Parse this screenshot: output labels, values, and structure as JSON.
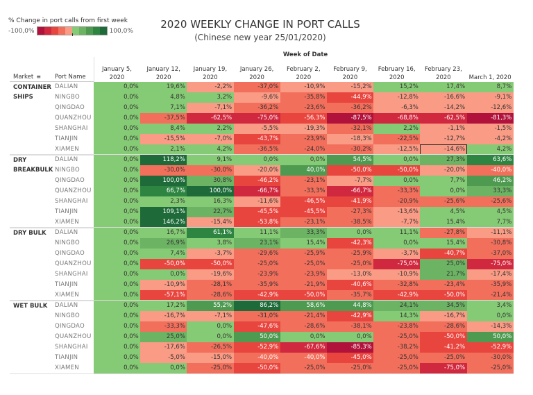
{
  "chart_data": {
    "type": "heatmap",
    "title": "2020 WEEKLY CHANGE IN PORT CALLS",
    "subtitle": "(Chinese new year 25/01/2020)",
    "column_group_label": "Week of Date",
    "row_headers": {
      "market": "Market",
      "port": "Port Name"
    },
    "legend": {
      "title": "% Change in port calls from first week",
      "min_label": "-100,0%",
      "max_label": "100,0%",
      "range": [
        -100,
        100
      ],
      "colors": [
        "#b0123b",
        "#d0283e",
        "#e8453f",
        "#f26f5c",
        "#f99b85",
        "#85ca74",
        "#6cb463",
        "#4e9a50",
        "#2e8542",
        "#1e6b39"
      ]
    },
    "columns": [
      [
        "January 5,",
        "2020"
      ],
      [
        "January 12,",
        "2020"
      ],
      [
        "January 19,",
        "2020"
      ],
      [
        "January 26,",
        "2020"
      ],
      [
        "February 2,",
        "2020"
      ],
      [
        "February 9,",
        "2020"
      ],
      [
        "February 16,",
        "2020"
      ],
      [
        "February 23,",
        "2020"
      ],
      [
        "",
        "March 1, 2020"
      ]
    ],
    "markets": [
      {
        "name_lines": [
          "CONTAINER",
          "SHIPS"
        ],
        "rows": [
          {
            "port": "DALIAN",
            "values": [
              0.0,
              19.6,
              -2.2,
              -37.0,
              -10.9,
              -15.2,
              15.2,
              17.4,
              8.7
            ]
          },
          {
            "port": "NINGBO",
            "values": [
              0.0,
              4.8,
              3.2,
              -9.6,
              -35.8,
              -44.9,
              -12.8,
              -16.6,
              -9.1
            ]
          },
          {
            "port": "QINGDAO",
            "values": [
              0.0,
              7.1,
              -7.1,
              -36.2,
              -23.6,
              -36.2,
              -6.3,
              -14.2,
              -12.6
            ]
          },
          {
            "port": "QUANZHOU",
            "values": [
              0.0,
              -37.5,
              -62.5,
              -75.0,
              -56.3,
              -87.5,
              -68.8,
              -62.5,
              -81.3
            ]
          },
          {
            "port": "SHANGHAI",
            "values": [
              0.0,
              8.4,
              2.2,
              -5.5,
              -19.3,
              -32.1,
              2.2,
              -1.1,
              -1.5
            ]
          },
          {
            "port": "TIANJIN",
            "values": [
              0.0,
              -15.5,
              -7.0,
              -43.7,
              -23.9,
              -18.3,
              -22.5,
              -12.7,
              -4.2
            ]
          },
          {
            "port": "XIAMEN",
            "values": [
              0.0,
              2.1,
              4.2,
              -36.5,
              -24.0,
              -30.2,
              -12.5,
              -14.6,
              4.2
            ]
          }
        ]
      },
      {
        "name_lines": [
          "DRY",
          "BREAKBULK"
        ],
        "rows": [
          {
            "port": "DALIAN",
            "values": [
              0.0,
              118.2,
              9.1,
              0.0,
              0.0,
              54.5,
              0.0,
              27.3,
              63.6
            ]
          },
          {
            "port": "NINGBO",
            "values": [
              0.0,
              -30.0,
              -30.0,
              -20.0,
              40.0,
              -50.0,
              -50.0,
              -20.0,
              -40.0
            ]
          },
          {
            "port": "QINGDAO",
            "values": [
              0.0,
              100.0,
              30.8,
              -46.2,
              -23.1,
              -7.7,
              0.0,
              7.7,
              46.2
            ]
          },
          {
            "port": "QUANZHOU",
            "values": [
              0.0,
              66.7,
              100.0,
              -66.7,
              -33.3,
              -66.7,
              -33.3,
              0.0,
              33.3
            ]
          },
          {
            "port": "SHANGHAI",
            "values": [
              0.0,
              2.3,
              16.3,
              -11.6,
              -46.5,
              -41.9,
              -20.9,
              -25.6,
              -25.6
            ]
          },
          {
            "port": "TIANJIN",
            "values": [
              0.0,
              109.1,
              22.7,
              -45.5,
              -45.5,
              -27.3,
              -13.6,
              4.5,
              4.5
            ]
          },
          {
            "port": "XIAMEN",
            "values": [
              0.0,
              146.2,
              -15.4,
              -53.8,
              -23.1,
              -38.5,
              -7.7,
              15.4,
              7.7
            ]
          }
        ]
      },
      {
        "name_lines": [
          "DRY BULK"
        ],
        "rows": [
          {
            "port": "DALIAN",
            "values": [
              0.0,
              16.7,
              61.1,
              11.1,
              33.3,
              0.0,
              11.1,
              -27.8,
              -11.1
            ]
          },
          {
            "port": "NINGBO",
            "values": [
              0.0,
              26.9,
              3.8,
              23.1,
              15.4,
              -42.3,
              0.0,
              15.4,
              -30.8
            ]
          },
          {
            "port": "QINGDAO",
            "values": [
              0.0,
              7.4,
              -3.7,
              -29.6,
              -25.9,
              -25.9,
              -3.7,
              -40.7,
              -37.0
            ]
          },
          {
            "port": "QUANZHOU",
            "values": [
              0.0,
              -50.0,
              -50.0,
              -25.0,
              -25.0,
              -25.0,
              -75.0,
              25.0,
              -75.0
            ]
          },
          {
            "port": "SHANGHAI",
            "values": [
              0.0,
              0.0,
              -19.6,
              -23.9,
              -23.9,
              -13.0,
              -10.9,
              21.7,
              -17.4
            ]
          },
          {
            "port": "TIANJIN",
            "values": [
              0.0,
              -10.9,
              -28.1,
              -35.9,
              -21.9,
              -40.6,
              -32.8,
              -23.4,
              -35.9
            ]
          },
          {
            "port": "XIAMEN",
            "values": [
              0.0,
              -57.1,
              -28.6,
              -42.9,
              -50.0,
              -35.7,
              -42.9,
              -50.0,
              -21.4
            ]
          }
        ]
      },
      {
        "name_lines": [
          "WET BULK"
        ],
        "rows": [
          {
            "port": "DALIAN",
            "values": [
              0.0,
              17.2,
              55.2,
              86.2,
              58.6,
              44.8,
              24.1,
              34.5,
              3.4
            ]
          },
          {
            "port": "NINGBO",
            "values": [
              0.0,
              -16.7,
              -7.1,
              -31.0,
              -21.4,
              -42.9,
              14.3,
              -16.7,
              0.0
            ]
          },
          {
            "port": "QINGDAO",
            "values": [
              0.0,
              -33.3,
              0.0,
              -47.6,
              -28.6,
              -38.1,
              -23.8,
              -28.6,
              -14.3
            ]
          },
          {
            "port": "QUANZHOU",
            "values": [
              0.0,
              25.0,
              0.0,
              50.0,
              0.0,
              0.0,
              -25.0,
              -50.0,
              50.0
            ]
          },
          {
            "port": "SHANGHAI",
            "values": [
              0.0,
              -17.6,
              -26.5,
              -52.9,
              -67.6,
              -85.3,
              -38.2,
              -41.2,
              -52.9
            ]
          },
          {
            "port": "TIANJIN",
            "values": [
              0.0,
              -5.0,
              -15.0,
              -40.0,
              -40.0,
              -45.0,
              -25.0,
              -25.0,
              -30.0
            ]
          },
          {
            "port": "XIAMEN",
            "values": [
              0.0,
              0.0,
              -25.0,
              -50.0,
              -25.0,
              -25.0,
              -25.0,
              -75.0,
              -25.0
            ]
          }
        ]
      }
    ],
    "selected_cell": {
      "market": "CONTAINER SHIPS",
      "port": "XIAMEN",
      "week": "February 23, 2020"
    }
  }
}
